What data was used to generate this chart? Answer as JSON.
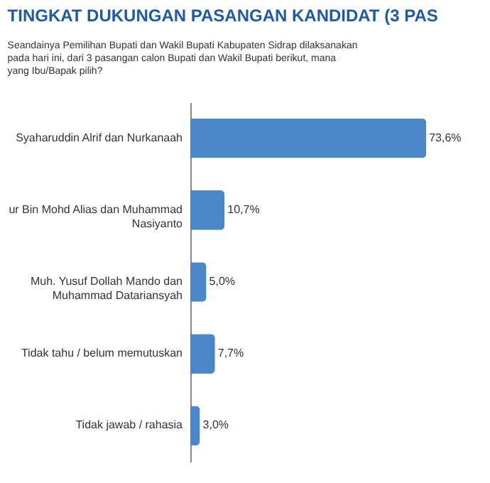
{
  "chart_data": {
    "type": "bar",
    "orientation": "horizontal",
    "tick_labels": false,
    "title": "TINGKAT DUKUNGAN PASANGAN KANDIDAT (3 PAS",
    "subtitle": "Seandainya Pemilihan Bupati dan Wakil Bupati Kabupaten Sidrap dilaksanakan pada hari ini, dari 3 pasangan calon Bupati dan Wakil Bupati berikut, mana yang Ibu/Bapak pilih?",
    "categories": [
      "Syaharuddin Alrif dan Nurkanaah",
      "ur Bin Mohd Alias dan Muhammad Nasiyanto",
      "Muh. Yusuf Dollah Mando dan Muhammad Datariansyah",
      "Tidak tahu / belum memutuskan",
      "Tidak jawab / rahasia"
    ],
    "values": [
      73.6,
      10.7,
      5.0,
      7.7,
      3.0
    ],
    "value_labels": [
      "73,6%",
      "10,7%",
      "5,0%",
      "7,7%",
      "3,0%"
    ],
    "color": "#4a86c8"
  }
}
